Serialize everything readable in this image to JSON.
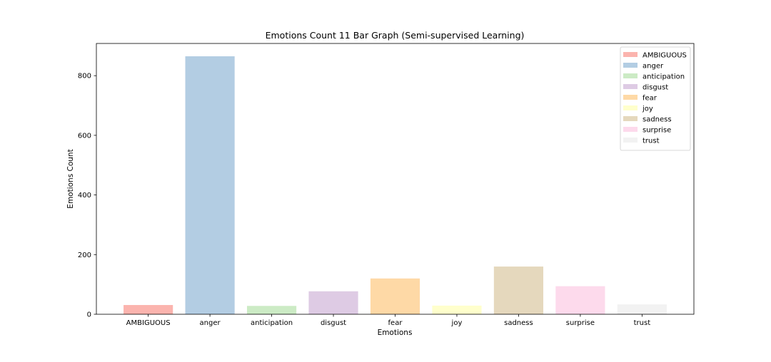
{
  "chart_data": {
    "type": "bar",
    "title": "Emotions Count 11 Bar Graph (Semi-supervised Learning)",
    "xlabel": "Emotions",
    "ylabel": "Emotions Count",
    "categories": [
      "AMBIGUOUS",
      "anger",
      "anticipation",
      "disgust",
      "fear",
      "joy",
      "sadness",
      "surprise",
      "trust"
    ],
    "values": [
      31,
      865,
      28,
      77,
      120,
      29,
      160,
      94,
      33
    ],
    "colors": [
      "#fbb4ae",
      "#b3cde3",
      "#ccebc5",
      "#decbe4",
      "#fed9a6",
      "#ffffcc",
      "#e5d8bd",
      "#fddaec",
      "#f2f2f2"
    ],
    "ylim": [
      0,
      908
    ],
    "yticks": [
      0,
      200,
      400,
      600,
      800
    ],
    "grid": false,
    "legend": {
      "placement": "top-right",
      "entries": [
        "AMBIGUOUS",
        "anger",
        "anticipation",
        "disgust",
        "fear",
        "joy",
        "sadness",
        "surprise",
        "trust"
      ]
    }
  }
}
